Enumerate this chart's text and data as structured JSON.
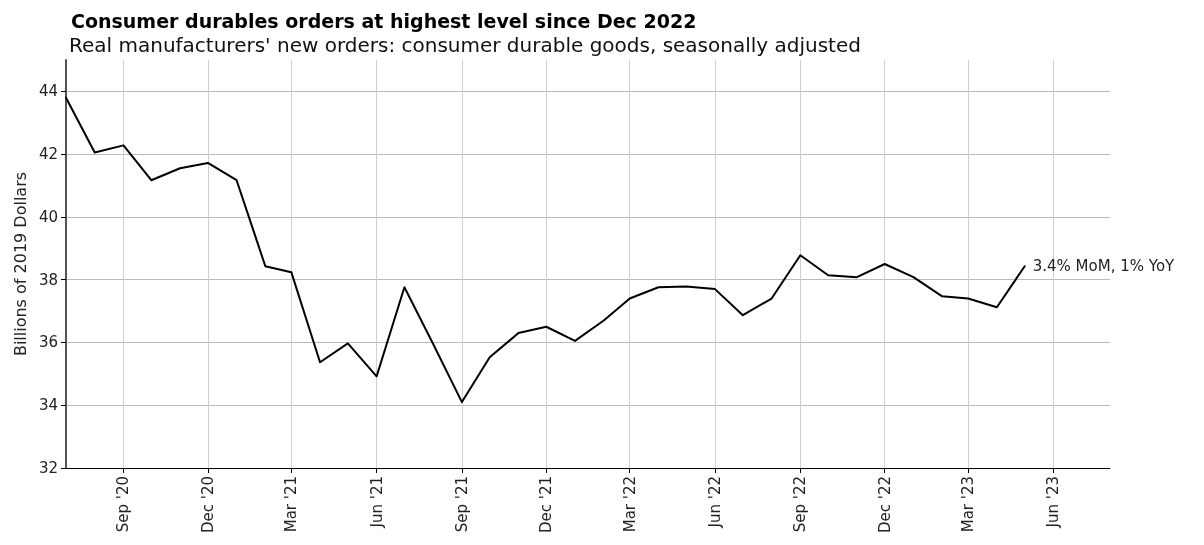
{
  "chart_data": {
    "type": "line",
    "title": "Consumer durables orders at highest level since Dec 2022",
    "subtitle": "Real manufacturers' new orders: consumer durable goods, seasonally adjusted",
    "ylabel": "Billions of 2019 Dollars",
    "x": [
      "2020-07",
      "2020-08",
      "2020-09",
      "2020-10",
      "2020-11",
      "2020-12",
      "2021-01",
      "2021-02",
      "2021-03",
      "2021-04",
      "2021-05",
      "2021-06",
      "2021-07",
      "2021-08",
      "2021-09",
      "2021-10",
      "2021-11",
      "2021-12",
      "2022-01",
      "2022-02",
      "2022-03",
      "2022-04",
      "2022-05",
      "2022-06",
      "2022-07",
      "2022-08",
      "2022-09",
      "2022-10",
      "2022-11",
      "2022-12",
      "2023-01",
      "2023-02",
      "2023-03",
      "2023-04",
      "2023-05"
    ],
    "series": [
      {
        "color": "#000000",
        "values": [
          43.8,
          42.05,
          42.28,
          41.17,
          41.55,
          41.72,
          41.17,
          38.43,
          38.24,
          35.37,
          35.97,
          34.92,
          37.76,
          35.95,
          34.1,
          35.53,
          36.3,
          36.5,
          36.05,
          36.7,
          37.4,
          37.76,
          37.78,
          37.7,
          36.87,
          37.4,
          38.78,
          38.14,
          38.08,
          38.5,
          38.08,
          37.47,
          37.4,
          37.12,
          38.43
        ]
      }
    ],
    "annotations": [
      {
        "text": "3.4% MoM, 1% YoY",
        "x": "2023-05",
        "y": 38.43
      }
    ],
    "xlim": [
      "2020-07",
      "2023-08"
    ],
    "xticks": [
      {
        "value": "2020-09",
        "label": "Sep '20"
      },
      {
        "value": "2020-12",
        "label": "Dec '20"
      },
      {
        "value": "2021-03",
        "label": "Mar '21"
      },
      {
        "value": "2021-06",
        "label": "Jun '21"
      },
      {
        "value": "2021-09",
        "label": "Sep '21"
      },
      {
        "value": "2021-12",
        "label": "Dec '21"
      },
      {
        "value": "2022-03",
        "label": "Mar '22"
      },
      {
        "value": "2022-06",
        "label": "Jun '22"
      },
      {
        "value": "2022-09",
        "label": "Sep '22"
      },
      {
        "value": "2022-12",
        "label": "Dec '22"
      },
      {
        "value": "2023-03",
        "label": "Mar '23"
      },
      {
        "value": "2023-06",
        "label": "Jun '23"
      }
    ],
    "ylim": [
      32,
      45
    ],
    "yticks": [
      32,
      34,
      36,
      38,
      40,
      42,
      44
    ],
    "grid": true,
    "marker": "none",
    "line_style": "solid"
  }
}
